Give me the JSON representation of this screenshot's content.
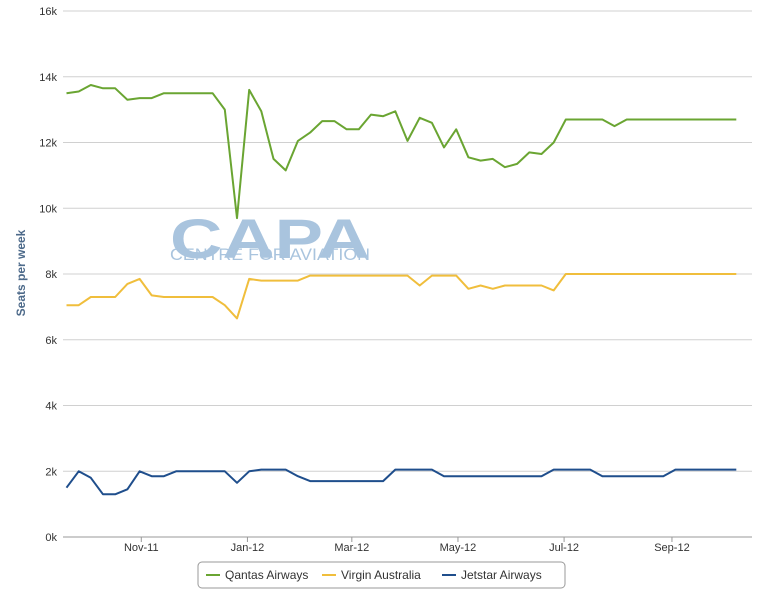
{
  "chart_data": {
    "type": "line",
    "title": "",
    "xlabel": "",
    "ylabel": "Seats per week",
    "ylim": [
      0,
      16000
    ],
    "yticks": [
      0,
      2000,
      4000,
      6000,
      8000,
      10000,
      12000,
      14000,
      16000
    ],
    "ytick_labels": [
      "0k",
      "2k",
      "4k",
      "6k",
      "8k",
      "10k",
      "12k",
      "14k",
      "16k"
    ],
    "x_dates": [
      "2011-09-19",
      "2011-09-26",
      "2011-10-03",
      "2011-10-10",
      "2011-10-17",
      "2011-10-24",
      "2011-10-31",
      "2011-11-07",
      "2011-11-14",
      "2011-11-21",
      "2011-11-28",
      "2011-12-05",
      "2011-12-12",
      "2011-12-19",
      "2011-12-26",
      "2012-01-02",
      "2012-01-09",
      "2012-01-16",
      "2012-01-23",
      "2012-01-30",
      "2012-02-06",
      "2012-02-13",
      "2012-02-20",
      "2012-02-27",
      "2012-03-05",
      "2012-03-12",
      "2012-03-19",
      "2012-03-26",
      "2012-04-02",
      "2012-04-09",
      "2012-04-16",
      "2012-04-23",
      "2012-04-30",
      "2012-05-07",
      "2012-05-14",
      "2012-05-21",
      "2012-05-28",
      "2012-06-04",
      "2012-06-11",
      "2012-06-18",
      "2012-06-25",
      "2012-07-02",
      "2012-07-09",
      "2012-07-16",
      "2012-07-23",
      "2012-07-30",
      "2012-08-06",
      "2012-08-13",
      "2012-08-20",
      "2012-08-27",
      "2012-09-03",
      "2012-09-10",
      "2012-09-17",
      "2012-09-24",
      "2012-10-01",
      "2012-10-08"
    ],
    "xticks": [
      {
        "date": "2011-11-01",
        "label": "Nov-11"
      },
      {
        "date": "2012-01-01",
        "label": "Jan-12"
      },
      {
        "date": "2012-03-01",
        "label": "Mar-12"
      },
      {
        "date": "2012-05-01",
        "label": "May-12"
      },
      {
        "date": "2012-07-01",
        "label": "Jul-12"
      },
      {
        "date": "2012-09-01",
        "label": "Sep-12"
      }
    ],
    "x_range": [
      "2011-09-17",
      "2012-10-17"
    ],
    "grid": true,
    "legend_position": "bottom",
    "series": [
      {
        "name": "Qantas Airways",
        "color": "#6aa532",
        "values": [
          13500,
          13550,
          13750,
          13650,
          13650,
          13300,
          13350,
          13350,
          13500,
          13500,
          13500,
          13500,
          13500,
          13000,
          9700,
          13600,
          12950,
          11500,
          11150,
          12050,
          12300,
          12650,
          12650,
          12400,
          12400,
          12850,
          12800,
          12950,
          12050,
          12750,
          12600,
          11850,
          12400,
          11550,
          11450,
          11500,
          11250,
          11350,
          11700,
          11650,
          12000,
          12700,
          12700,
          12700,
          12700,
          12500,
          12700,
          12700,
          12700,
          12700,
          12700,
          12700,
          12700,
          12700,
          12700,
          12700
        ]
      },
      {
        "name": "Virgin Australia",
        "color": "#f0be3c",
        "values": [
          7050,
          7050,
          7300,
          7300,
          7300,
          7700,
          7850,
          7350,
          7300,
          7300,
          7300,
          7300,
          7300,
          7050,
          6650,
          7850,
          7800,
          7800,
          7800,
          7800,
          7950,
          7950,
          7950,
          7950,
          7950,
          7950,
          7950,
          7950,
          7950,
          7650,
          7950,
          7950,
          7950,
          7550,
          7650,
          7550,
          7650,
          7650,
          7650,
          7650,
          7500,
          8000,
          8000,
          8000,
          8000,
          8000,
          8000,
          8000,
          8000,
          8000,
          8000,
          8000,
          8000,
          8000,
          8000,
          8000
        ]
      },
      {
        "name": "Jetstar Airways",
        "color": "#1f4e8c",
        "values": [
          1500,
          2000,
          1800,
          1300,
          1300,
          1450,
          2000,
          1850,
          1850,
          2000,
          2000,
          2000,
          2000,
          2000,
          1650,
          2000,
          2050,
          2050,
          2050,
          1850,
          1700,
          1700,
          1700,
          1700,
          1700,
          1700,
          1700,
          2050,
          2050,
          2050,
          2050,
          1850,
          1850,
          1850,
          1850,
          1850,
          1850,
          1850,
          1850,
          1850,
          2050,
          2050,
          2050,
          2050,
          1850,
          1850,
          1850,
          1850,
          1850,
          1850,
          2050,
          2050,
          2050,
          2050,
          2050,
          2050
        ]
      }
    ]
  },
  "watermark": {
    "brand": "CAPA",
    "tagline": "CENTRE FOR AVIATION"
  }
}
